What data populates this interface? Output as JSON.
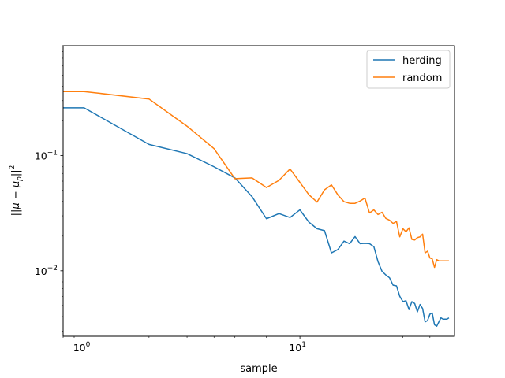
{
  "chart_data": {
    "type": "line",
    "xlabel": "sample",
    "ylabel_parts": [
      "||",
      "μ",
      " − ",
      "μ",
      "p",
      "||",
      "2"
    ],
    "xscale": "log",
    "yscale": "log",
    "xlim": [
      0.8,
      52
    ],
    "ylim": [
      0.0027,
      0.9
    ],
    "x_major_ticks": [
      {
        "value": 1,
        "label": "10",
        "exp": "0"
      },
      {
        "value": 10,
        "label": "10",
        "exp": "1"
      }
    ],
    "y_major_ticks": [
      {
        "value": 0.01,
        "label": "10",
        "exp": "−2"
      },
      {
        "value": 0.1,
        "label": "10",
        "exp": "−1"
      }
    ],
    "legend_position": "top-right",
    "grid": false,
    "series": [
      {
        "name": "herding",
        "color": "#1f77b4",
        "x": [
          0,
          1,
          2,
          3,
          4,
          5,
          6,
          7,
          8,
          9,
          10,
          11,
          12,
          13,
          14,
          15,
          16,
          17,
          18,
          19,
          20,
          21,
          22,
          23,
          24,
          25,
          26,
          27,
          28,
          29,
          30,
          31,
          32,
          33,
          34,
          35,
          36,
          37,
          38,
          39,
          40,
          41,
          42,
          43,
          44,
          45,
          46,
          47,
          48,
          49
        ],
        "y": [
          0.26,
          0.26,
          0.125,
          0.104,
          0.08,
          0.064,
          0.044,
          0.0283,
          0.0314,
          0.029,
          0.0338,
          0.0265,
          0.0232,
          0.0223,
          0.0143,
          0.0153,
          0.0181,
          0.0172,
          0.0198,
          0.0172,
          0.0173,
          0.0172,
          0.0162,
          0.012,
          0.0099,
          0.0092,
          0.0087,
          0.0075,
          0.0074,
          0.006,
          0.0054,
          0.0055,
          0.0046,
          0.0054,
          0.0052,
          0.0044,
          0.0051,
          0.0047,
          0.0036,
          0.0037,
          0.0042,
          0.0043,
          0.0034,
          0.0033,
          0.0036,
          0.0039,
          0.0038,
          0.0038,
          0.0038,
          0.0039
        ]
      },
      {
        "name": "random",
        "color": "#ff7f0e",
        "x": [
          0,
          1,
          2,
          3,
          4,
          5,
          6,
          7,
          8,
          9,
          10,
          11,
          12,
          13,
          14,
          15,
          16,
          17,
          18,
          19,
          20,
          21,
          22,
          23,
          24,
          25,
          26,
          27,
          28,
          29,
          30,
          31,
          32,
          33,
          34,
          35,
          36,
          37,
          38,
          39,
          40,
          41,
          42,
          43,
          44,
          45,
          46,
          47,
          48,
          49
        ],
        "y": [
          0.36,
          0.36,
          0.31,
          0.18,
          0.115,
          0.063,
          0.064,
          0.0528,
          0.061,
          0.0765,
          0.0585,
          0.0458,
          0.0395,
          0.0505,
          0.0557,
          0.0455,
          0.0398,
          0.0385,
          0.0385,
          0.0403,
          0.0428,
          0.0318,
          0.0338,
          0.0308,
          0.0322,
          0.0285,
          0.0275,
          0.0258,
          0.0268,
          0.0197,
          0.0232,
          0.0218,
          0.0236,
          0.0187,
          0.0185,
          0.0194,
          0.0197,
          0.0208,
          0.0143,
          0.0148,
          0.0129,
          0.0127,
          0.0107,
          0.0125,
          0.0122,
          0.0122,
          0.0122,
          0.0122,
          0.0122,
          0.0122
        ]
      }
    ]
  }
}
